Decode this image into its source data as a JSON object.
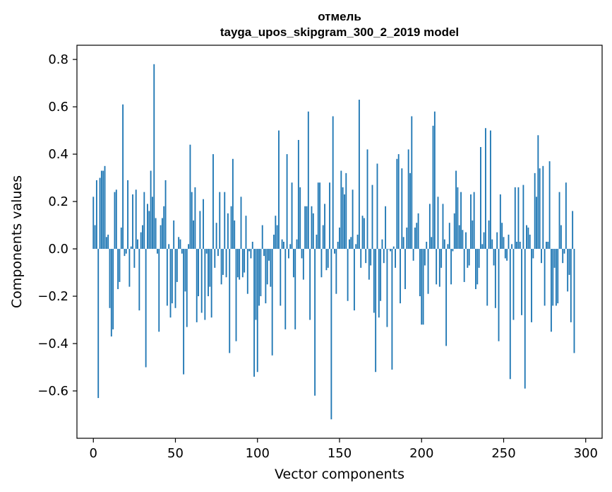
{
  "chart_data": {
    "type": "bar",
    "title_line1": "отмель",
    "title_line2": "tayga_upos_skipgram_300_2_2019 model",
    "xlabel": "Vector components",
    "ylabel": "Components values",
    "xlim": [
      -10,
      310
    ],
    "ylim": [
      -0.8,
      0.86
    ],
    "xticks": [
      0,
      50,
      100,
      150,
      200,
      250,
      300
    ],
    "xtick_labels": [
      "0",
      "50",
      "100",
      "150",
      "200",
      "250",
      "300"
    ],
    "yticks": [
      -0.6,
      -0.4,
      -0.2,
      0.0,
      0.2,
      0.4,
      0.6,
      0.8
    ],
    "ytick_labels": [
      "−0.6",
      "−0.4",
      "−0.2",
      "0.0",
      "0.2",
      "0.4",
      "0.6",
      "0.8"
    ],
    "bar_color": "#1f77b4",
    "values": [
      0.22,
      0.1,
      0.29,
      -0.63,
      0.3,
      0.33,
      0.33,
      0.35,
      0.05,
      0.06,
      -0.25,
      -0.37,
      -0.34,
      0.24,
      0.25,
      -0.17,
      -0.14,
      0.09,
      0.61,
      -0.03,
      -0.02,
      0.29,
      -0.16,
      0.01,
      0.23,
      -0.08,
      0.25,
      0.04,
      -0.26,
      0.07,
      0.1,
      0.24,
      -0.5,
      0.19,
      0.16,
      0.33,
      0.22,
      0.78,
      0.13,
      -0.02,
      -0.35,
      0.1,
      0.13,
      0.18,
      0.29,
      -0.24,
      0.02,
      -0.29,
      -0.23,
      0.12,
      -0.25,
      -0.14,
      0.05,
      0.04,
      -0.02,
      -0.53,
      -0.18,
      -0.33,
      0.02,
      0.44,
      0.24,
      0.12,
      0.26,
      -0.31,
      -0.2,
      0.16,
      -0.27,
      0.21,
      -0.3,
      -0.02,
      -0.2,
      -0.16,
      -0.29,
      0.4,
      -0.08,
      0.11,
      -0.03,
      0.24,
      -0.15,
      -0.11,
      0.24,
      -0.12,
      0.15,
      -0.44,
      0.18,
      0.38,
      0.12,
      -0.39,
      -0.12,
      -0.13,
      0.22,
      -0.12,
      -0.1,
      0.14,
      -0.19,
      -0.01,
      -0.04,
      0.03,
      -0.54,
      -0.3,
      -0.52,
      -0.24,
      -0.2,
      0.1,
      -0.03,
      -0.23,
      -0.15,
      -0.05,
      -0.16,
      -0.45,
      0.06,
      0.14,
      0.1,
      0.5,
      -0.24,
      0.04,
      0.03,
      -0.34,
      0.4,
      -0.04,
      0.02,
      0.28,
      -0.12,
      -0.34,
      0.04,
      0.46,
      0.26,
      -0.04,
      -0.13,
      0.18,
      0.18,
      0.58,
      -0.3,
      0.18,
      0.15,
      -0.62,
      0.06,
      0.28,
      0.28,
      -0.12,
      0.1,
      0.19,
      -0.09,
      -0.08,
      0.28,
      -0.72,
      0.56,
      -0.02,
      -0.19,
      0.03,
      0.09,
      0.33,
      0.26,
      0.23,
      0.32,
      -0.22,
      0.04,
      0.05,
      0.25,
      -0.26,
      0.02,
      0.06,
      0.63,
      -0.08,
      0.14,
      0.13,
      -0.06,
      0.42,
      -0.13,
      -0.07,
      0.27,
      -0.27,
      -0.52,
      0.36,
      -0.29,
      -0.22,
      0.04,
      -0.06,
      0.18,
      -0.33,
      0.0,
      -0.01,
      -0.51,
      0.01,
      -0.08,
      0.38,
      0.4,
      -0.23,
      0.34,
      0.05,
      -0.17,
      0.09,
      0.42,
      0.32,
      0.56,
      -0.05,
      0.09,
      0.11,
      0.15,
      -0.2,
      -0.32,
      -0.32,
      -0.07,
      0.03,
      -0.19,
      0.19,
      0.05,
      0.52,
      0.58,
      -0.15,
      0.22,
      -0.16,
      -0.08,
      0.19,
      0.04,
      -0.41,
      0.02,
      0.11,
      -0.15,
      -0.01,
      0.15,
      0.33,
      0.26,
      0.1,
      0.24,
      0.08,
      -0.14,
      0.07,
      -0.08,
      -0.07,
      0.23,
      0.12,
      0.24,
      -0.17,
      -0.15,
      -0.08,
      0.43,
      0.02,
      0.07,
      0.51,
      -0.24,
      0.12,
      0.5,
      0.04,
      -0.07,
      -0.25,
      0.07,
      -0.39,
      0.23,
      0.11,
      0.05,
      -0.04,
      -0.05,
      0.06,
      -0.55,
      0.02,
      -0.3,
      0.26,
      0.03,
      0.26,
      0.03,
      -0.28,
      0.27,
      -0.59,
      0.1,
      0.09,
      0.06,
      -0.31,
      -0.04,
      0.32,
      0.22,
      0.48,
      0.34,
      -0.06,
      0.35,
      -0.24,
      0.03,
      0.03,
      0.37,
      -0.35,
      -0.24,
      -0.08,
      -0.24,
      -0.23,
      0.24,
      0.1,
      -0.06,
      -0.02,
      0.28,
      -0.18,
      -0.11,
      -0.31,
      0.16,
      -0.44
    ]
  }
}
